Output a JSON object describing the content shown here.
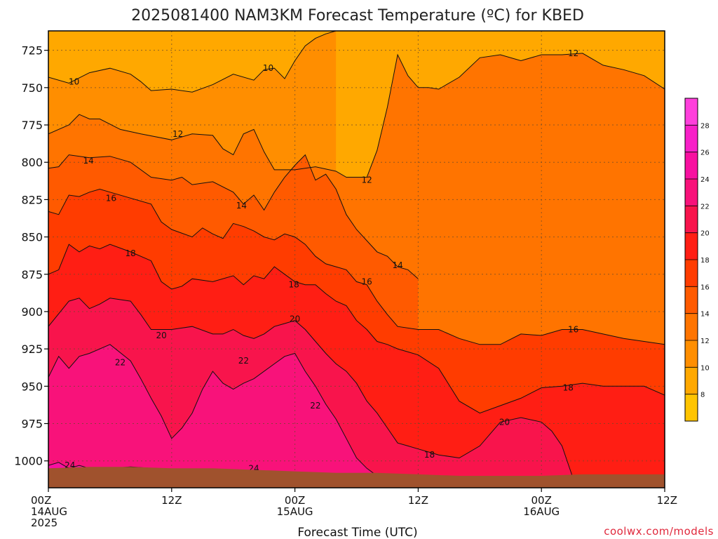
{
  "chart_data": {
    "type": "heatmap",
    "title": "2025081400 NAM3KM Forecast Temperature (ºC) for KBED",
    "xlabel": "Forecast Time (UTC)",
    "ylabel": "",
    "x_ticks": [
      {
        "hour": 0,
        "lines": [
          "00Z",
          "14AUG",
          "2025"
        ]
      },
      {
        "hour": 12,
        "lines": [
          "12Z"
        ]
      },
      {
        "hour": 24,
        "lines": [
          "00Z",
          "15AUG"
        ]
      },
      {
        "hour": 36,
        "lines": [
          "12Z"
        ]
      },
      {
        "hour": 48,
        "lines": [
          "00Z",
          "16AUG"
        ]
      },
      {
        "hour": 60,
        "lines": [
          "12Z"
        ]
      }
    ],
    "xlim": [
      0,
      60
    ],
    "y_ticks": [
      725,
      750,
      775,
      800,
      825,
      850,
      875,
      900,
      925,
      950,
      975,
      1000
    ],
    "ylim": [
      712,
      1018
    ],
    "y_scale": "pressure (hPa, increasing downward)",
    "grid": true,
    "colorbar": {
      "levels": [
        8,
        10,
        12,
        14,
        16,
        18,
        20,
        22,
        24,
        26,
        28
      ],
      "colors": [
        "#ffc400",
        "#ffa800",
        "#ff8e00",
        "#ff7400",
        "#ff5a00",
        "#ff3c00",
        "#ff1e14",
        "#f8144c",
        "#f8127a",
        "#f810a0",
        "#f820c8",
        "#ff40dc"
      ],
      "position": "right"
    },
    "contour_lines": [
      {
        "label": "10",
        "points": [
          [
            0,
            743
          ],
          [
            2,
            747
          ],
          [
            4,
            740
          ],
          [
            6,
            737
          ],
          [
            8,
            741
          ],
          [
            9,
            746
          ],
          [
            10,
            752
          ],
          [
            12,
            751
          ],
          [
            14,
            753
          ],
          [
            16,
            748
          ],
          [
            18,
            741
          ],
          [
            20,
            745
          ],
          [
            21,
            738
          ],
          [
            22,
            737
          ],
          [
            23,
            744
          ],
          [
            24,
            732
          ],
          [
            25,
            722
          ],
          [
            26,
            717
          ],
          [
            27,
            714
          ],
          [
            28,
            712
          ]
        ]
      },
      {
        "label": "12",
        "points": [
          [
            0,
            781
          ],
          [
            2,
            775
          ],
          [
            3,
            768
          ],
          [
            4,
            771
          ],
          [
            5,
            771
          ],
          [
            7,
            778
          ],
          [
            9,
            781
          ],
          [
            12,
            785
          ],
          [
            14,
            781
          ],
          [
            16,
            782
          ],
          [
            17,
            791
          ],
          [
            18,
            795
          ],
          [
            19,
            781
          ],
          [
            20,
            778
          ],
          [
            21,
            793
          ],
          [
            22,
            805
          ],
          [
            24,
            805
          ],
          [
            26,
            803
          ],
          [
            28,
            806
          ],
          [
            29,
            810
          ],
          [
            31,
            810
          ],
          [
            32,
            792
          ],
          [
            33,
            763
          ],
          [
            34,
            728
          ],
          [
            35,
            742
          ],
          [
            36,
            750
          ],
          [
            37,
            750
          ],
          [
            38,
            751
          ],
          [
            40,
            743
          ],
          [
            42,
            730
          ],
          [
            44,
            728
          ],
          [
            46,
            732
          ],
          [
            48,
            728
          ],
          [
            50,
            728
          ],
          [
            52,
            727
          ],
          [
            54,
            735
          ],
          [
            56,
            738
          ],
          [
            58,
            742
          ],
          [
            60,
            751
          ]
        ]
      },
      {
        "label": "14",
        "points": [
          [
            0,
            804
          ],
          [
            1,
            803
          ],
          [
            2,
            795
          ],
          [
            4,
            797
          ],
          [
            6,
            796
          ],
          [
            8,
            800
          ],
          [
            10,
            810
          ],
          [
            12,
            812
          ],
          [
            13,
            810
          ],
          [
            14,
            815
          ],
          [
            16,
            813
          ],
          [
            18,
            820
          ],
          [
            19,
            828
          ],
          [
            20,
            822
          ],
          [
            21,
            832
          ],
          [
            22,
            820
          ],
          [
            23,
            810
          ],
          [
            24,
            802
          ],
          [
            25,
            795
          ],
          [
            26,
            812
          ],
          [
            27,
            808
          ],
          [
            28,
            818
          ],
          [
            29,
            835
          ],
          [
            30,
            845
          ],
          [
            32,
            860
          ],
          [
            33,
            863
          ],
          [
            34,
            870
          ],
          [
            35,
            872
          ],
          [
            36,
            878
          ]
        ]
      },
      {
        "label": "16",
        "points": [
          [
            0,
            833
          ],
          [
            1,
            835
          ],
          [
            2,
            822
          ],
          [
            3,
            823
          ],
          [
            4,
            820
          ],
          [
            5,
            818
          ],
          [
            6,
            820
          ],
          [
            8,
            824
          ],
          [
            10,
            828
          ],
          [
            11,
            840
          ],
          [
            12,
            845
          ],
          [
            14,
            850
          ],
          [
            15,
            844
          ],
          [
            16,
            848
          ],
          [
            17,
            851
          ],
          [
            18,
            841
          ],
          [
            19,
            843
          ],
          [
            20,
            846
          ],
          [
            21,
            850
          ],
          [
            22,
            852
          ],
          [
            23,
            848
          ],
          [
            24,
            850
          ],
          [
            25,
            855
          ],
          [
            26,
            863
          ],
          [
            27,
            868
          ],
          [
            28,
            870
          ],
          [
            29,
            872
          ],
          [
            30,
            880
          ],
          [
            31,
            882
          ],
          [
            32,
            893
          ],
          [
            33,
            902
          ],
          [
            34,
            910
          ],
          [
            36,
            912
          ],
          [
            38,
            912
          ],
          [
            40,
            918
          ],
          [
            42,
            922
          ],
          [
            44,
            922
          ],
          [
            46,
            915
          ],
          [
            48,
            916
          ],
          [
            50,
            912
          ],
          [
            52,
            912
          ],
          [
            54,
            915
          ],
          [
            56,
            918
          ],
          [
            58,
            920
          ],
          [
            60,
            922
          ]
        ]
      },
      {
        "label": "18",
        "points": [
          [
            0,
            875
          ],
          [
            1,
            872
          ],
          [
            2,
            855
          ],
          [
            3,
            860
          ],
          [
            4,
            856
          ],
          [
            5,
            858
          ],
          [
            6,
            855
          ],
          [
            8,
            860
          ],
          [
            10,
            866
          ],
          [
            11,
            880
          ],
          [
            12,
            885
          ],
          [
            13,
            883
          ],
          [
            14,
            878
          ],
          [
            16,
            880
          ],
          [
            18,
            876
          ],
          [
            19,
            882
          ],
          [
            20,
            876
          ],
          [
            21,
            878
          ],
          [
            22,
            870
          ],
          [
            23,
            875
          ],
          [
            24,
            880
          ],
          [
            25,
            882
          ],
          [
            26,
            882
          ],
          [
            27,
            888
          ],
          [
            28,
            893
          ],
          [
            29,
            896
          ],
          [
            30,
            906
          ],
          [
            31,
            912
          ],
          [
            32,
            920
          ],
          [
            33,
            922
          ],
          [
            34,
            925
          ],
          [
            35,
            927
          ],
          [
            36,
            929
          ],
          [
            38,
            938
          ],
          [
            40,
            960
          ],
          [
            42,
            968
          ],
          [
            44,
            963
          ],
          [
            46,
            958
          ],
          [
            48,
            951
          ],
          [
            50,
            950
          ],
          [
            52,
            948
          ],
          [
            54,
            950
          ],
          [
            56,
            950
          ],
          [
            58,
            950
          ],
          [
            60,
            956
          ]
        ]
      },
      {
        "label": "20",
        "points": [
          [
            0,
            910
          ],
          [
            2,
            893
          ],
          [
            3,
            891
          ],
          [
            4,
            898
          ],
          [
            5,
            895
          ],
          [
            6,
            891
          ],
          [
            8,
            893
          ],
          [
            9,
            902
          ],
          [
            10,
            912
          ],
          [
            12,
            912
          ],
          [
            14,
            910
          ],
          [
            16,
            915
          ],
          [
            17,
            915
          ],
          [
            18,
            912
          ],
          [
            19,
            916
          ],
          [
            20,
            918
          ],
          [
            21,
            915
          ],
          [
            22,
            910
          ],
          [
            23,
            908
          ],
          [
            24,
            906
          ],
          [
            25,
            912
          ],
          [
            26,
            920
          ],
          [
            27,
            928
          ],
          [
            28,
            935
          ],
          [
            29,
            940
          ],
          [
            30,
            948
          ],
          [
            31,
            960
          ],
          [
            32,
            968
          ],
          [
            33,
            978
          ],
          [
            34,
            988
          ],
          [
            35,
            990
          ],
          [
            36,
            992
          ],
          [
            38,
            996
          ],
          [
            40,
            998
          ],
          [
            42,
            990
          ],
          [
            44,
            974
          ],
          [
            46,
            971
          ],
          [
            48,
            974
          ],
          [
            49,
            980
          ],
          [
            50,
            990
          ],
          [
            51,
            1010
          ]
        ]
      },
      {
        "label": "22",
        "points": [
          [
            0,
            944
          ],
          [
            1,
            930
          ],
          [
            2,
            938
          ],
          [
            3,
            930
          ],
          [
            4,
            928
          ],
          [
            6,
            922
          ],
          [
            8,
            933
          ],
          [
            9,
            945
          ],
          [
            10,
            958
          ],
          [
            11,
            970
          ],
          [
            12,
            985
          ],
          [
            13,
            978
          ],
          [
            14,
            968
          ],
          [
            15,
            952
          ],
          [
            16,
            940
          ],
          [
            17,
            948
          ],
          [
            18,
            952
          ],
          [
            19,
            948
          ],
          [
            20,
            945
          ],
          [
            22,
            935
          ],
          [
            23,
            930
          ],
          [
            24,
            928
          ],
          [
            25,
            940
          ],
          [
            26,
            950
          ],
          [
            27,
            962
          ],
          [
            28,
            972
          ],
          [
            29,
            985
          ],
          [
            30,
            998
          ],
          [
            31,
            1005
          ],
          [
            32,
            1010
          ]
        ]
      },
      {
        "label": "24",
        "points": [
          [
            0,
            1003
          ],
          [
            1,
            1001
          ],
          [
            2,
            1005
          ],
          [
            3,
            1003
          ],
          [
            4,
            1005
          ],
          [
            6,
            1005
          ],
          [
            8,
            1004
          ],
          [
            10,
            1005
          ]
        ]
      }
    ],
    "contour_label_positions": [
      {
        "label": "10",
        "x": 2.5,
        "y": 746
      },
      {
        "label": "10",
        "x": 21.4,
        "y": 737
      },
      {
        "label": "12",
        "x": 12.6,
        "y": 781
      },
      {
        "label": "12",
        "x": 31.0,
        "y": 812
      },
      {
        "label": "12",
        "x": 51.1,
        "y": 727
      },
      {
        "label": "14",
        "x": 3.9,
        "y": 799
      },
      {
        "label": "14",
        "x": 18.8,
        "y": 829
      },
      {
        "label": "14",
        "x": 34.0,
        "y": 869
      },
      {
        "label": "16",
        "x": 6.1,
        "y": 824
      },
      {
        "label": "16",
        "x": 31.0,
        "y": 880
      },
      {
        "label": "16",
        "x": 51.1,
        "y": 912
      },
      {
        "label": "18",
        "x": 8.0,
        "y": 861
      },
      {
        "label": "18",
        "x": 23.9,
        "y": 882
      },
      {
        "label": "18",
        "x": 37.1,
        "y": 996
      },
      {
        "label": "18",
        "x": 50.6,
        "y": 951
      },
      {
        "label": "20",
        "x": 11.0,
        "y": 916
      },
      {
        "label": "20",
        "x": 24.0,
        "y": 905
      },
      {
        "label": "20",
        "x": 44.4,
        "y": 974
      },
      {
        "label": "22",
        "x": 7.0,
        "y": 934
      },
      {
        "label": "22",
        "x": 19.0,
        "y": 933
      },
      {
        "label": "22",
        "x": 26.0,
        "y": 963
      },
      {
        "label": "24",
        "x": 2.1,
        "y": 1003
      },
      {
        "label": "24",
        "x": 20.0,
        "y": 1005
      }
    ],
    "terrain": {
      "points": [
        [
          0,
          1005
        ],
        [
          4,
          1004
        ],
        [
          8,
          1004
        ],
        [
          12,
          1005
        ],
        [
          16,
          1005
        ],
        [
          20,
          1006
        ],
        [
          24,
          1007
        ],
        [
          28,
          1008
        ],
        [
          32,
          1008
        ],
        [
          36,
          1009
        ],
        [
          40,
          1010
        ],
        [
          44,
          1010
        ],
        [
          48,
          1010
        ],
        [
          52,
          1009
        ],
        [
          56,
          1009
        ],
        [
          60,
          1009
        ]
      ]
    }
  },
  "credit": "coolwx.com/models"
}
